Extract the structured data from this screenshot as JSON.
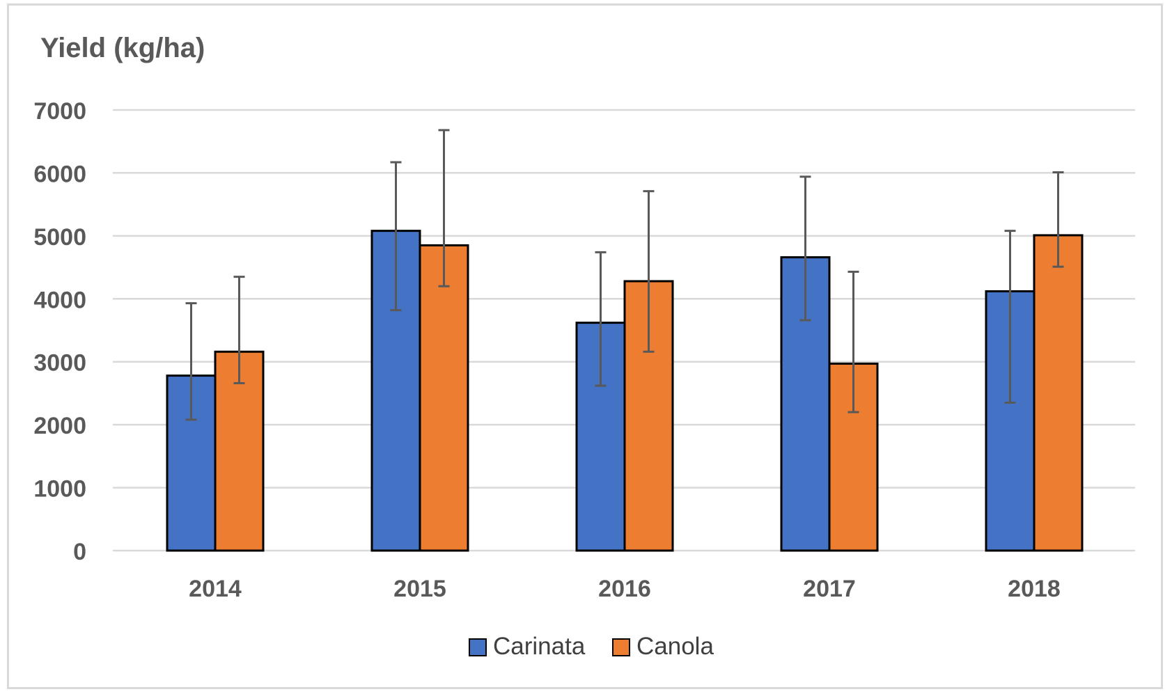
{
  "chart_data": {
    "type": "bar",
    "title": "",
    "ylabel": "Yield (kg/ha)",
    "xlabel": "",
    "ylim": [
      0,
      7000
    ],
    "y_ticks": [
      0,
      1000,
      2000,
      3000,
      4000,
      5000,
      6000,
      7000
    ],
    "grid": true,
    "legend_position": "bottom",
    "categories": [
      "2014",
      "2015",
      "2016",
      "2017",
      "2018"
    ],
    "series": [
      {
        "name": "Carinata",
        "color": "#4472c4",
        "values": [
          2780,
          5080,
          3620,
          4660,
          4120
        ],
        "error_low": [
          2080,
          3820,
          2620,
          3660,
          2350
        ],
        "error_high": [
          3930,
          6170,
          4740,
          5940,
          5080
        ]
      },
      {
        "name": "Canola",
        "color": "#ed7d31",
        "values": [
          3160,
          4850,
          4280,
          2970,
          5010
        ],
        "error_low": [
          2660,
          4200,
          3160,
          2200,
          4510
        ],
        "error_high": [
          4350,
          6680,
          5710,
          4430,
          6010
        ]
      }
    ]
  }
}
